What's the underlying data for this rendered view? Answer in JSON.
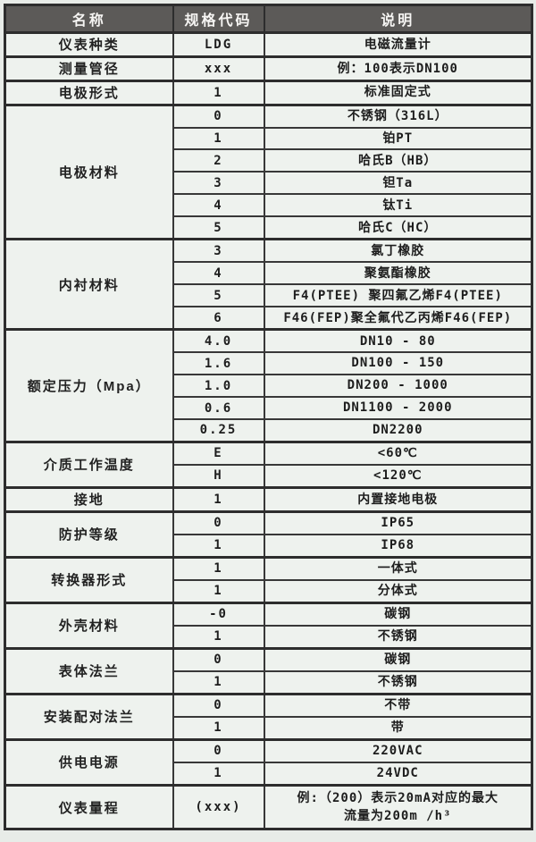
{
  "colors": {
    "page_background": "#e8ece8",
    "cell_background": "#eef2ee",
    "header_background": "#5c5a58",
    "header_text": "#f6f5f3",
    "border": "#2d2d2d",
    "body_text": "#1d1d1d"
  },
  "table": {
    "headers": {
      "name": "名称",
      "code": "规格代码",
      "desc": "说明"
    },
    "groups": [
      {
        "name": "仪表种类",
        "rows": [
          {
            "code": "LDG",
            "desc": "电磁流量计"
          }
        ]
      },
      {
        "name": "测量管径",
        "rows": [
          {
            "code": "xxx",
            "desc": "例：100表示DN100"
          }
        ]
      },
      {
        "name": "电极形式",
        "rows": [
          {
            "code": "1",
            "desc": "标准固定式"
          }
        ]
      },
      {
        "name": "电极材料",
        "rows": [
          {
            "code": "0",
            "desc": "不锈钢（316L）"
          },
          {
            "code": "1",
            "desc": "铂PT"
          },
          {
            "code": "2",
            "desc": "哈氏B（HB）"
          },
          {
            "code": "3",
            "desc": "钽Ta"
          },
          {
            "code": "4",
            "desc": "钛Ti"
          },
          {
            "code": "5",
            "desc": "哈氏C（HC）"
          }
        ]
      },
      {
        "name": "内衬材料",
        "rows": [
          {
            "code": "3",
            "desc": "氯丁橡胶"
          },
          {
            "code": "4",
            "desc": "聚氨酯橡胶"
          },
          {
            "code": "5",
            "desc": "F4(PTEE) 聚四氟乙烯F4(PTEE)"
          },
          {
            "code": "6",
            "desc": "F46(FEP)聚全氟代乙丙烯F46(FEP)"
          }
        ]
      },
      {
        "name": "额定压力（Mpa）",
        "rows": [
          {
            "code": "4.0",
            "desc": "DN10 - 80"
          },
          {
            "code": "1.6",
            "desc": "DN100 - 150"
          },
          {
            "code": "1.0",
            "desc": "DN200 - 1000"
          },
          {
            "code": "0.6",
            "desc": "DN1100 - 2000"
          },
          {
            "code": "0.25",
            "desc": "DN2200"
          }
        ]
      },
      {
        "name": "介质工作温度",
        "rows": [
          {
            "code": "E",
            "desc": "<60℃"
          },
          {
            "code": "H",
            "desc": "<120℃"
          }
        ]
      },
      {
        "name": "接地",
        "rows": [
          {
            "code": "1",
            "desc": "内置接地电极"
          }
        ]
      },
      {
        "name": "防护等级",
        "rows": [
          {
            "code": "0",
            "desc": "IP65"
          },
          {
            "code": "1",
            "desc": "IP68"
          }
        ]
      },
      {
        "name": "转换器形式",
        "rows": [
          {
            "code": "1",
            "desc": "一体式"
          },
          {
            "code": "1",
            "desc": "分体式"
          }
        ]
      },
      {
        "name": "外壳材料",
        "rows": [
          {
            "code": "-0",
            "desc": "碳钢"
          },
          {
            "code": "1",
            "desc": "不锈钢"
          }
        ]
      },
      {
        "name": "表体法兰",
        "rows": [
          {
            "code": "0",
            "desc": "碳钢"
          },
          {
            "code": "1",
            "desc": "不锈钢"
          }
        ]
      },
      {
        "name": "安装配对法兰",
        "rows": [
          {
            "code": "0",
            "desc": "不带"
          },
          {
            "code": "1",
            "desc": "带"
          }
        ]
      },
      {
        "name": "供电电源",
        "rows": [
          {
            "code": "0",
            "desc": "220VAC"
          },
          {
            "code": "1",
            "desc": "24VDC"
          }
        ]
      },
      {
        "name": "仪表量程",
        "tall": true,
        "rows": [
          {
            "code": "(xxx)",
            "desc": "例:（200）表示20mA对应的最大\n流量为200m /h³"
          }
        ]
      }
    ]
  }
}
